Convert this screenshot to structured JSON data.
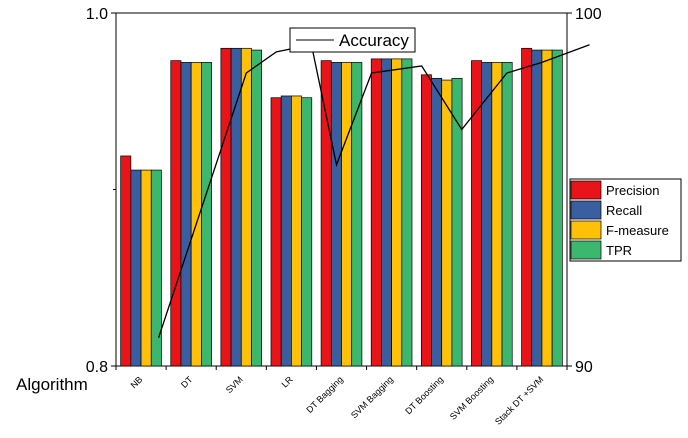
{
  "chart_data": {
    "type": "bar",
    "xlabel": "Algorithm",
    "categories": [
      "NB",
      "DT",
      "SVM",
      "LR",
      "DT  Bagging",
      "SVM Bagging",
      "DT Boosting",
      "SVM Boosting",
      "Stack DT +SVM"
    ],
    "ylim": [
      0.8,
      1.0
    ],
    "yticks": [
      0.8,
      1.0
    ],
    "y2lim": [
      90,
      100
    ],
    "y2ticks": [
      90,
      100
    ],
    "series": [
      {
        "name": "Precision",
        "color": "#e8141a",
        "values": [
          0.919,
          0.973,
          0.98,
          0.952,
          0.973,
          0.974,
          0.965,
          0.973,
          0.98
        ]
      },
      {
        "name": "Recall",
        "color": "#3a5fa0",
        "values": [
          0.911,
          0.972,
          0.98,
          0.953,
          0.972,
          0.974,
          0.963,
          0.972,
          0.979
        ]
      },
      {
        "name": "F-measure",
        "color": "#ffc107",
        "values": [
          0.911,
          0.972,
          0.98,
          0.953,
          0.972,
          0.974,
          0.962,
          0.972,
          0.979
        ]
      },
      {
        "name": "TPR",
        "color": "#3cb86e",
        "values": [
          0.911,
          0.972,
          0.979,
          0.952,
          0.972,
          0.974,
          0.963,
          0.972,
          0.979
        ]
      }
    ],
    "line": {
      "name": "Accuracy",
      "color": "#000000",
      "axis": "right",
      "x": [
        0.85,
        2.6,
        3.2,
        3.9,
        4.4,
        5.1,
        6.1,
        6.9,
        7.8,
        8.5,
        9.45
      ],
      "values": [
        90.8,
        98.3,
        98.9,
        99.1,
        95.7,
        98.3,
        98.5,
        96.7,
        98.3,
        98.6,
        99.1
      ]
    },
    "legend_position": "right"
  }
}
